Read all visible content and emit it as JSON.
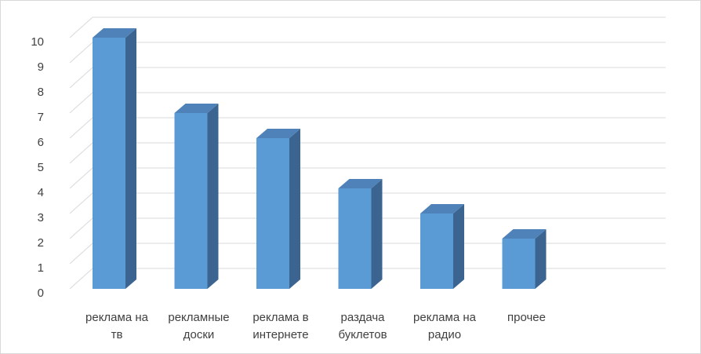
{
  "chart_data": {
    "type": "bar",
    "style": "3d-column",
    "categories": [
      [
        "реклама на",
        "тв"
      ],
      [
        "рекламные",
        "доски"
      ],
      [
        "реклама в",
        "интернете"
      ],
      [
        "раздача",
        "буклетов"
      ],
      [
        "реклама на",
        "радио"
      ],
      [
        "прочее"
      ]
    ],
    "values": [
      10,
      7,
      6,
      4,
      3,
      2
    ],
    "yticks": [
      "0",
      "1",
      "2",
      "3",
      "4",
      "5",
      "6",
      "7",
      "8",
      "9",
      "10"
    ],
    "ylim": [
      0,
      10
    ],
    "grid": true,
    "colors": {
      "front": "#5b9bd5",
      "side": "#3b6490",
      "top": "#4f82b8",
      "grid": "#d9d9d9"
    }
  }
}
